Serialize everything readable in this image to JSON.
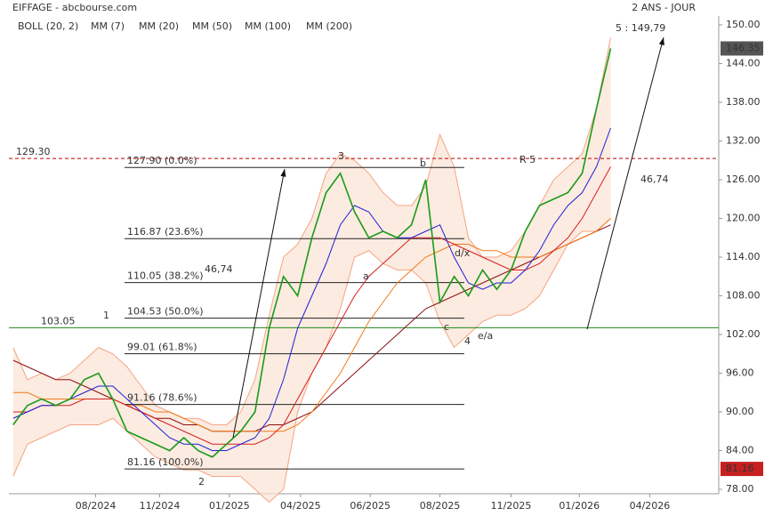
{
  "chart_data": {
    "type": "line",
    "title": "EIFFAGE - abcbourse.com",
    "period": "2 ANS - JOUR",
    "legend_title": "BOLL (20, 2)",
    "xlim": [
      -0.3,
      49.6
    ],
    "xticks": [
      {
        "value": 5.8,
        "label": "08/2024"
      },
      {
        "value": 10.3,
        "label": "11/2024"
      },
      {
        "value": 15.2,
        "label": "01/2025"
      },
      {
        "value": 20.2,
        "label": "04/2025"
      },
      {
        "value": 25.1,
        "label": "06/2025"
      },
      {
        "value": 30,
        "label": "08/2025"
      },
      {
        "value": 35,
        "label": "11/2025"
      },
      {
        "value": 39.8,
        "label": "01/2026"
      },
      {
        "value": 44.75,
        "label": "04/2026"
      }
    ],
    "ylim": [
      77.31,
      152.76
    ],
    "yticks": [
      {
        "value": 78,
        "label": "78.00"
      },
      {
        "value": 84,
        "label": "84.00"
      },
      {
        "value": 90,
        "label": "90.00"
      },
      {
        "value": 96,
        "label": "96.00"
      },
      {
        "value": 102,
        "label": "102.00"
      },
      {
        "value": 108,
        "label": "108.00"
      },
      {
        "value": 114,
        "label": "114.00"
      },
      {
        "value": 120,
        "label": "120.00"
      },
      {
        "value": 126,
        "label": "126.00"
      },
      {
        "value": 132,
        "label": "132.00"
      },
      {
        "value": 138,
        "label": "138.00"
      },
      {
        "value": 144,
        "label": "144.00"
      },
      {
        "value": 150,
        "label": "150.00"
      }
    ],
    "x": [
      0,
      1,
      2,
      3,
      4,
      5,
      6,
      7,
      8,
      9,
      10,
      11,
      12,
      13,
      14,
      15,
      16,
      17,
      18,
      19,
      20,
      21,
      22,
      23,
      24,
      25,
      26,
      27,
      28,
      29,
      30,
      31,
      32,
      33,
      34,
      35,
      36,
      37,
      38,
      39,
      40,
      41,
      42
    ],
    "band": {
      "color": "#f4a582",
      "upper": [
        100,
        95,
        96,
        95,
        96,
        98,
        100,
        99,
        97,
        94,
        91,
        90,
        89,
        89,
        88,
        88,
        90,
        95,
        105,
        114,
        116,
        120,
        127,
        130,
        129,
        127,
        124,
        122,
        122,
        125,
        133,
        128,
        117,
        114,
        114,
        115,
        118,
        122,
        126,
        128,
        130,
        137,
        148
      ],
      "lower": [
        80,
        85,
        86,
        87,
        88,
        88,
        88,
        89,
        87,
        85,
        83,
        82,
        81,
        81,
        80,
        80,
        80,
        78,
        76,
        78,
        90,
        96,
        100,
        106,
        114,
        115,
        113,
        112,
        112,
        110,
        104,
        100,
        102,
        104,
        105,
        105,
        106,
        108,
        112,
        116,
        118,
        118,
        120
      ]
    },
    "series": [
      {
        "name": "MM (7)",
        "color": "#1a9a1a",
        "values": [
          88,
          91,
          92,
          91,
          92,
          95,
          96,
          92,
          87,
          86,
          85,
          84,
          86,
          84,
          83,
          85,
          87,
          90,
          103,
          111,
          108,
          117,
          124,
          127,
          121,
          117,
          118,
          117,
          119,
          126,
          107,
          111,
          108,
          112,
          109,
          112,
          118,
          122,
          123,
          124,
          127,
          137,
          146.35
        ]
      },
      {
        "name": "MM (20)",
        "color": "#1f1fd6",
        "values": [
          89,
          90,
          91,
          91,
          92,
          93,
          94,
          94,
          92,
          90,
          88,
          86,
          85,
          85,
          84,
          84,
          85,
          86,
          89,
          95,
          103,
          108,
          113,
          119,
          122,
          121,
          118,
          117,
          117,
          118,
          119,
          114,
          110,
          109,
          110,
          110,
          112,
          115,
          119,
          122,
          124,
          128,
          134
        ]
      },
      {
        "name": "MM (50)",
        "color": "#d62020",
        "values": [
          90,
          90,
          91,
          91,
          91,
          92,
          92,
          92,
          91,
          90,
          89,
          88,
          87,
          86,
          85,
          85,
          85,
          85,
          86,
          88,
          92,
          96,
          100,
          104,
          108,
          111,
          113,
          115,
          117,
          117,
          117,
          116,
          115,
          114,
          113,
          112,
          112,
          113,
          115,
          117,
          120,
          124,
          128
        ]
      },
      {
        "name": "MM (100)",
        "color": "#f07a1a",
        "values": [
          93,
          93,
          92,
          92,
          92,
          92,
          92,
          92,
          91,
          91,
          90,
          90,
          89,
          88,
          87,
          87,
          87,
          87,
          87,
          87,
          88,
          90,
          93,
          96,
          100,
          104,
          107,
          110,
          112,
          114,
          115,
          116,
          116,
          115,
          115,
          114,
          114,
          114,
          115,
          116,
          117,
          118,
          120
        ]
      },
      {
        "name": "MM (200)",
        "color": "#8b1010",
        "values": [
          98,
          97,
          96,
          95,
          95,
          94,
          93,
          92,
          91,
          90,
          89,
          89,
          88,
          88,
          87,
          87,
          87,
          87,
          88,
          88,
          89,
          90,
          92,
          94,
          96,
          98,
          100,
          102,
          104,
          106,
          107,
          108,
          109,
          110,
          111,
          112,
          113,
          114,
          115,
          116,
          117,
          118,
          119
        ]
      }
    ],
    "fibonacci": [
      {
        "value": 127.9,
        "label": "127.90  (0.0%)"
      },
      {
        "value": 116.87,
        "label": "116.87  (23.6%)"
      },
      {
        "value": 110.05,
        "label": "110.05  (38.2%)"
      },
      {
        "value": 104.53,
        "label": "104.53  (50.0%)"
      },
      {
        "value": 99.01,
        "label": "99.01  (61.8%)"
      },
      {
        "value": 91.16,
        "label": "91.16  (78.6%)"
      },
      {
        "value": 81.16,
        "label": "81.16  (100.0%)"
      }
    ],
    "resistance": {
      "value": 129.3,
      "label": "129.30",
      "color": "#c00000"
    },
    "support": {
      "value": 103.05,
      "label": "103.05",
      "color": "#1a8a1a"
    },
    "last_price": {
      "value": 146.35,
      "label": "146.35"
    },
    "low_price": {
      "value": 81.16,
      "label": "81.16"
    },
    "annotations": [
      {
        "text": "1",
        "color": "#1a237e"
      },
      {
        "text": "2",
        "color": "#1a237e"
      },
      {
        "text": "3",
        "color": "#1a237e"
      },
      {
        "text": "4",
        "color": "#1a237e"
      },
      {
        "text": "5 : 149,79",
        "color": "#1a237e"
      },
      {
        "text": "R 5",
        "color": "#1a237e"
      },
      {
        "text": "46,74",
        "color": "#111111"
      },
      {
        "text": "46,74",
        "color": "#111111"
      },
      {
        "text": "a",
        "color": "#b01010"
      },
      {
        "text": "b",
        "color": "#b01010"
      },
      {
        "text": "c",
        "color": "#b01010"
      },
      {
        "text": "d/x",
        "color": "#b01010"
      },
      {
        "text": "e/a",
        "color": "#b01010"
      }
    ]
  }
}
